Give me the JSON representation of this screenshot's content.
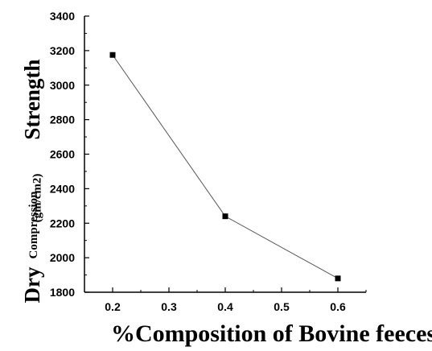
{
  "chart_data": {
    "type": "line",
    "title": "",
    "xlabel": "%Composition of Bovine feeces",
    "ylabel": {
      "part1": "Dry",
      "part2": "Compression",
      "part3": "(gm/cm2)",
      "part4": "Strength"
    },
    "x": [
      0.2,
      0.4,
      0.6
    ],
    "series": [
      {
        "values": [
          3175,
          2240,
          1880
        ]
      }
    ],
    "xlim": [
      0.15,
      0.65
    ],
    "ylim": [
      1800,
      3400
    ],
    "x_ticks": [
      "0.2",
      "0.3",
      "0.4",
      "0.5",
      "0.6"
    ],
    "x_tick_values": [
      0.2,
      0.3,
      0.4,
      0.5,
      0.6
    ],
    "y_ticks": [
      "1800",
      "2000",
      "2200",
      "2400",
      "2600",
      "2800",
      "3000",
      "3200",
      "3400"
    ],
    "y_tick_values": [
      1800,
      2000,
      2200,
      2400,
      2600,
      2800,
      3000,
      3200,
      3400
    ],
    "grid": false,
    "colors": {
      "line": "#555555",
      "marker": "#000000",
      "axis": "#000000"
    }
  }
}
